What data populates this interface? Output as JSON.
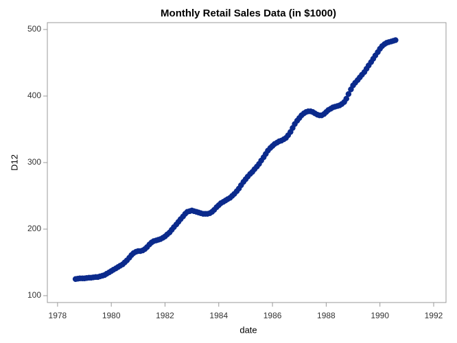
{
  "chart_data": {
    "type": "scatter",
    "title": "Monthly Retail Sales Data (in $1000)",
    "x_label": "date",
    "y_label": "D12",
    "xlim": [
      1977.62,
      1992.46
    ],
    "ylim": [
      89.7,
      510.3
    ],
    "xticks": [
      1978,
      1980,
      1982,
      1984,
      1986,
      1988,
      1990,
      1992
    ],
    "yticks": [
      100,
      200,
      300,
      400,
      500
    ],
    "grid": false,
    "series": [
      {
        "name": "D12",
        "color": "#0b2a8c",
        "x": [
          1978.67,
          1978.75,
          1978.83,
          1978.92,
          1979.0,
          1979.08,
          1979.17,
          1979.25,
          1979.33,
          1979.42,
          1979.5,
          1979.58,
          1979.67,
          1979.75,
          1979.83,
          1979.92,
          1980.0,
          1980.08,
          1980.17,
          1980.25,
          1980.33,
          1980.42,
          1980.5,
          1980.58,
          1980.67,
          1980.75,
          1980.83,
          1980.92,
          1981.0,
          1981.08,
          1981.17,
          1981.25,
          1981.33,
          1981.42,
          1981.5,
          1981.58,
          1981.67,
          1981.75,
          1981.83,
          1981.92,
          1982.0,
          1982.08,
          1982.17,
          1982.25,
          1982.33,
          1982.42,
          1982.5,
          1982.58,
          1982.67,
          1982.75,
          1982.83,
          1982.92,
          1983.0,
          1983.08,
          1983.17,
          1983.25,
          1983.33,
          1983.42,
          1983.5,
          1983.58,
          1983.67,
          1983.75,
          1983.83,
          1983.92,
          1984.0,
          1984.08,
          1984.17,
          1984.25,
          1984.33,
          1984.42,
          1984.5,
          1984.58,
          1984.67,
          1984.75,
          1984.83,
          1984.92,
          1985.0,
          1985.08,
          1985.17,
          1985.25,
          1985.33,
          1985.42,
          1985.5,
          1985.58,
          1985.67,
          1985.75,
          1985.83,
          1985.92,
          1986.0,
          1986.08,
          1986.17,
          1986.25,
          1986.33,
          1986.42,
          1986.5,
          1986.58,
          1986.67,
          1986.75,
          1986.83,
          1986.92,
          1987.0,
          1987.08,
          1987.17,
          1987.25,
          1987.33,
          1987.42,
          1987.5,
          1987.58,
          1987.67,
          1987.75,
          1987.83,
          1987.92,
          1988.0,
          1988.08,
          1988.17,
          1988.25,
          1988.33,
          1988.42,
          1988.5,
          1988.58,
          1988.67,
          1988.75,
          1988.83,
          1988.92,
          1989.0,
          1989.08,
          1989.17,
          1989.25,
          1989.33,
          1989.42,
          1989.5,
          1989.58,
          1989.67,
          1989.75,
          1989.83,
          1989.92,
          1990.0,
          1990.08,
          1990.17,
          1990.25,
          1990.33,
          1990.42,
          1990.5,
          1990.58
        ],
        "values": [
          125,
          125.5,
          126,
          126,
          126,
          126.5,
          127,
          127,
          127.5,
          128,
          128,
          129,
          130,
          131,
          133,
          135,
          137,
          139,
          141,
          143,
          145,
          147,
          150,
          153,
          157,
          161,
          164,
          166,
          167,
          167,
          168,
          170,
          173,
          177,
          180,
          182,
          183,
          184,
          185,
          187,
          189,
          192,
          195,
          199,
          203,
          207,
          211,
          215,
          219,
          223,
          226,
          227,
          228,
          227,
          226,
          225,
          224,
          223,
          223,
          223,
          224,
          226,
          229,
          233,
          236,
          239,
          241,
          243,
          245,
          247,
          250,
          253,
          257,
          261,
          266,
          271,
          275,
          279,
          283,
          286,
          290,
          294,
          298,
          303,
          308,
          313,
          318,
          322,
          325,
          328,
          330,
          332,
          333,
          335,
          337,
          341,
          346,
          352,
          358,
          363,
          367,
          371,
          374,
          376,
          377,
          377,
          376,
          374,
          372,
          371,
          371,
          373,
          376,
          379,
          381,
          383,
          384,
          385,
          386,
          388,
          391,
          396,
          403,
          410,
          416,
          420,
          424,
          428,
          432,
          436,
          441,
          446,
          451,
          456,
          461,
          466,
          471,
          475,
          478,
          480,
          481,
          482,
          483,
          484
        ]
      }
    ]
  }
}
